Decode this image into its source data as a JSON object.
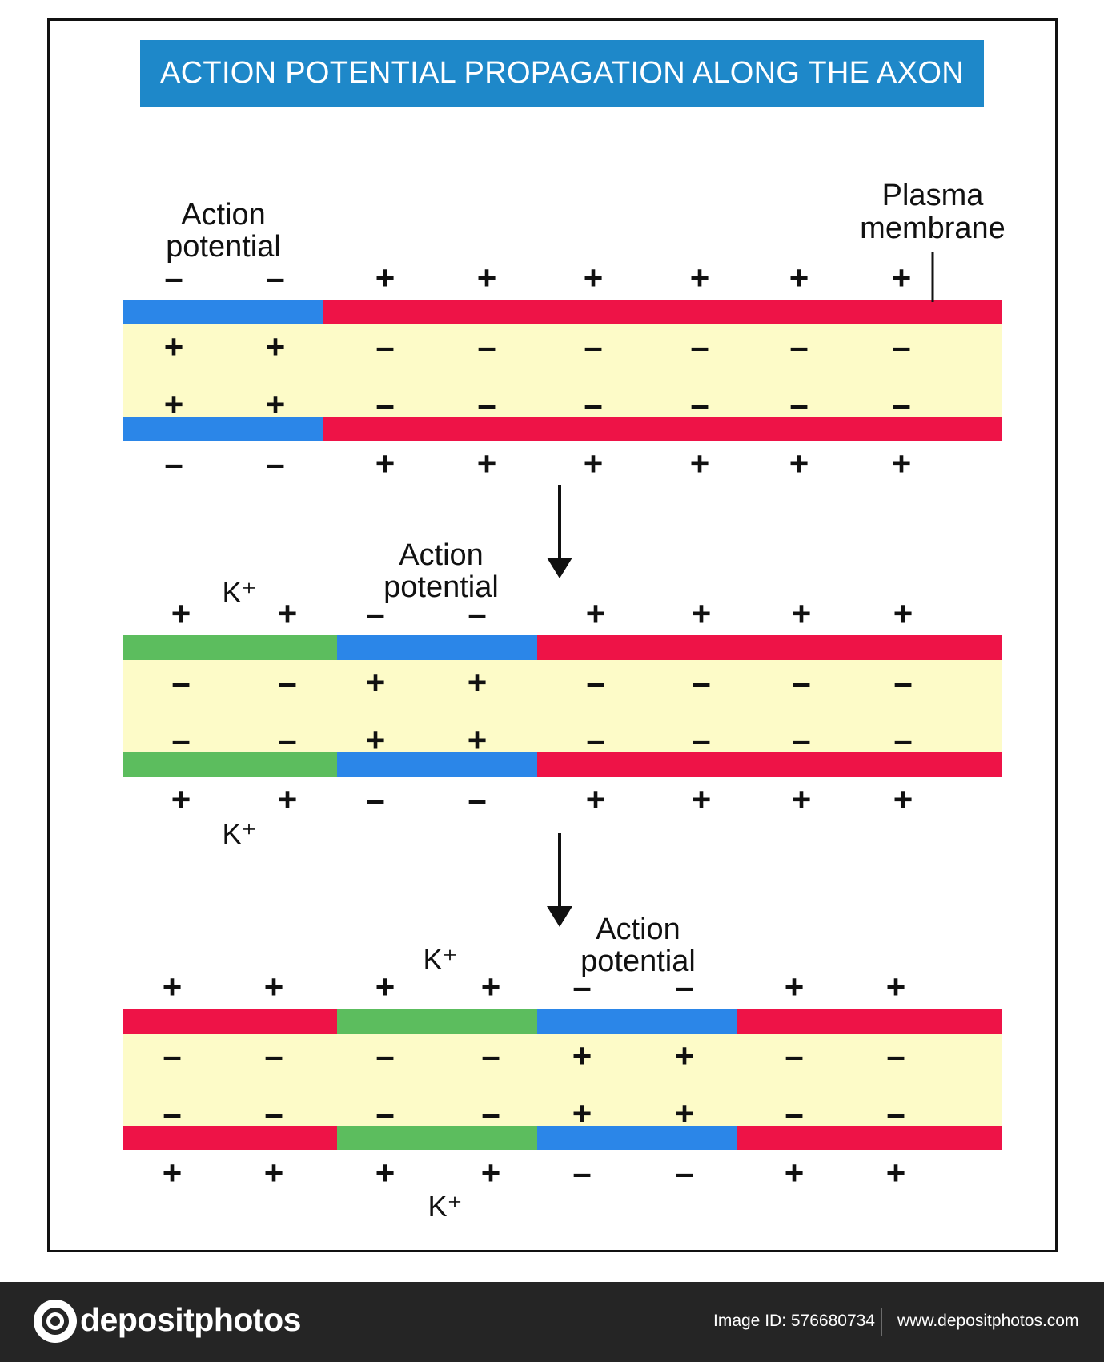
{
  "title": "ACTION POTENTIAL PROPAGATION ALONG THE AXON",
  "colors": {
    "title_bg": "#1e88c9",
    "resting_membrane": "#ee1347",
    "action_potential_membrane": "#2b86e8",
    "repolarizing_membrane": "#5cbd5e",
    "axoplasm": "#fdfbc8",
    "footer_bg": "#252525"
  },
  "labels": {
    "action_potential": [
      "Action",
      "potential"
    ],
    "plasma_membrane": [
      "Plasma",
      "membrane"
    ],
    "k_ion": "K⁺",
    "plus": "+",
    "minus": "–"
  },
  "stages": [
    {
      "name": "stage-1",
      "segment_states": [
        "ap",
        "rest"
      ],
      "outer_charges": [
        "–",
        "–",
        "+",
        "+",
        "+",
        "+",
        "+",
        "+"
      ],
      "inner_charges": [
        "+",
        "+",
        "–",
        "–",
        "–",
        "–",
        "–",
        "–"
      ]
    },
    {
      "name": "stage-2",
      "segment_states": [
        "repol",
        "ap",
        "rest"
      ],
      "outer_charges": [
        "+",
        "+",
        "–",
        "–",
        "+",
        "+",
        "+",
        "+"
      ],
      "inner_charges": [
        "–",
        "–",
        "+",
        "+",
        "–",
        "–",
        "–",
        "–"
      ]
    },
    {
      "name": "stage-3",
      "segment_states": [
        "rest",
        "repol",
        "ap",
        "rest"
      ],
      "outer_charges": [
        "+",
        "+",
        "+",
        "+",
        "–",
        "–",
        "+",
        "+"
      ],
      "inner_charges": [
        "–",
        "–",
        "–",
        "–",
        "+",
        "+",
        "–",
        "–"
      ]
    }
  ],
  "footer": {
    "brand": "depositphotos",
    "image_id": "Image ID: 576680734",
    "site": "www.depositphotos.com"
  }
}
